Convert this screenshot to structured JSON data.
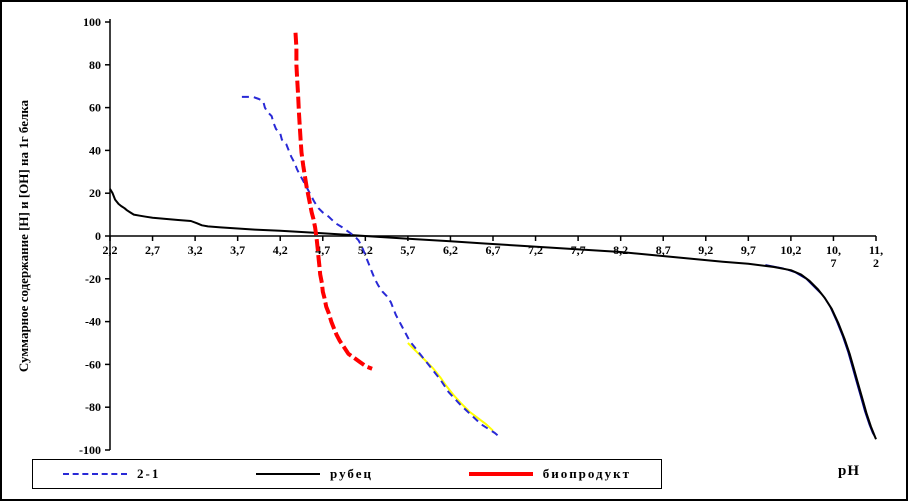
{
  "window": {
    "background": "#ffffff",
    "border_color": "#000000"
  },
  "chart_data": {
    "type": "line",
    "title": "",
    "xlabel": "pH",
    "ylabel": "Суммарное содержание [H] и [OH] на 1г белка",
    "xlim": [
      2.2,
      11.2
    ],
    "ylim": [
      -100,
      100
    ],
    "grid": false,
    "legend_position": "bottom",
    "y_ticks": [
      100,
      80,
      60,
      40,
      20,
      0,
      -20,
      -40,
      -60,
      -80,
      -100
    ],
    "x_ticks": [
      2.2,
      2.7,
      3.2,
      3.7,
      4.2,
      4.7,
      5.2,
      5.7,
      6.2,
      6.7,
      7.2,
      7.7,
      8.2,
      8.7,
      9.2,
      9.7,
      10.2,
      10.7,
      11.2
    ],
    "x_tick_labels": [
      [
        "2,2"
      ],
      [
        "2,7"
      ],
      [
        "3,2"
      ],
      [
        "3,7"
      ],
      [
        "4,2"
      ],
      [
        "4,7"
      ],
      [
        "5,2"
      ],
      [
        "5,7"
      ],
      [
        "6,2"
      ],
      [
        "6,7"
      ],
      [
        "7,2"
      ],
      [
        "7,7"
      ],
      [
        "8,2"
      ],
      [
        "8,7"
      ],
      [
        "9,2"
      ],
      [
        "9,7"
      ],
      [
        "10,2"
      ],
      [
        "10,",
        "7"
      ],
      [
        "11,",
        "2"
      ]
    ],
    "series": [
      {
        "name": "unlabeled-yellow",
        "in_legend": false,
        "color": "#ffff00",
        "width": 2,
        "dash": null,
        "points": [
          [
            5.7,
            -50
          ],
          [
            5.8,
            -54
          ],
          [
            5.9,
            -58
          ],
          [
            6.0,
            -62
          ],
          [
            6.08,
            -66
          ],
          [
            6.15,
            -70
          ],
          [
            6.23,
            -74
          ],
          [
            6.32,
            -78
          ],
          [
            6.42,
            -82
          ],
          [
            6.52,
            -85
          ],
          [
            6.62,
            -88
          ],
          [
            6.7,
            -91
          ]
        ]
      },
      {
        "name": "unlabeled-navy",
        "in_legend": false,
        "color": "#000080",
        "width": 1.5,
        "dash": null,
        "points": [
          [
            9.9,
            -13.5
          ],
          [
            10.1,
            -15
          ],
          [
            10.25,
            -17
          ],
          [
            10.38,
            -20
          ],
          [
            10.48,
            -24
          ],
          [
            10.58,
            -28
          ],
          [
            10.66,
            -33
          ],
          [
            10.74,
            -40
          ],
          [
            10.81,
            -47
          ],
          [
            10.87,
            -54
          ],
          [
            10.92,
            -61
          ],
          [
            10.97,
            -68
          ],
          [
            11.02,
            -75
          ],
          [
            11.07,
            -82
          ],
          [
            11.12,
            -88
          ],
          [
            11.16,
            -92
          ],
          [
            11.19,
            -94
          ]
        ]
      },
      {
        "name": "рубец",
        "in_legend": true,
        "color": "#000000",
        "width": 2,
        "dash": null,
        "points": [
          [
            2.2,
            22
          ],
          [
            2.23,
            20
          ],
          [
            2.26,
            17
          ],
          [
            2.3,
            15
          ],
          [
            2.33,
            14
          ],
          [
            2.37,
            13
          ],
          [
            2.4,
            12
          ],
          [
            2.44,
            11
          ],
          [
            2.48,
            10
          ],
          [
            2.55,
            9.5
          ],
          [
            2.62,
            9
          ],
          [
            2.7,
            8.5
          ],
          [
            2.85,
            8
          ],
          [
            3.0,
            7.5
          ],
          [
            3.15,
            7
          ],
          [
            3.22,
            6
          ],
          [
            3.28,
            5
          ],
          [
            3.35,
            4.5
          ],
          [
            3.5,
            4
          ],
          [
            3.7,
            3.5
          ],
          [
            3.9,
            3
          ],
          [
            4.2,
            2.5
          ],
          [
            4.6,
            1.5
          ],
          [
            5.0,
            0.5
          ],
          [
            5.4,
            -0.5
          ],
          [
            5.8,
            -1.5
          ],
          [
            6.2,
            -2.5
          ],
          [
            6.6,
            -3.5
          ],
          [
            7.0,
            -4.5
          ],
          [
            7.4,
            -5.5
          ],
          [
            7.8,
            -6.5
          ],
          [
            8.2,
            -7.5
          ],
          [
            8.6,
            -9
          ],
          [
            9.0,
            -10.5
          ],
          [
            9.4,
            -12
          ],
          [
            9.7,
            -13
          ],
          [
            10.0,
            -14.5
          ],
          [
            10.2,
            -16
          ],
          [
            10.32,
            -18
          ],
          [
            10.42,
            -21
          ],
          [
            10.52,
            -25
          ],
          [
            10.6,
            -29
          ],
          [
            10.68,
            -34
          ],
          [
            10.76,
            -41
          ],
          [
            10.83,
            -48
          ],
          [
            10.89,
            -55
          ],
          [
            10.94,
            -62
          ],
          [
            10.99,
            -69
          ],
          [
            11.04,
            -76
          ],
          [
            11.09,
            -83
          ],
          [
            11.14,
            -89
          ],
          [
            11.18,
            -93
          ],
          [
            11.2,
            -95
          ]
        ]
      },
      {
        "name": "2-1",
        "in_legend": true,
        "color": "#2929d6",
        "width": 2,
        "dash": "7 5",
        "points": [
          [
            3.75,
            65
          ],
          [
            3.88,
            65
          ],
          [
            3.95,
            64
          ],
          [
            4.0,
            63
          ],
          [
            4.02,
            60
          ],
          [
            4.05,
            58
          ],
          [
            4.1,
            56
          ],
          [
            4.12,
            53
          ],
          [
            4.15,
            50
          ],
          [
            4.2,
            48
          ],
          [
            4.22,
            45
          ],
          [
            4.27,
            43
          ],
          [
            4.3,
            40
          ],
          [
            4.33,
            37
          ],
          [
            4.37,
            34
          ],
          [
            4.4,
            31
          ],
          [
            4.44,
            28
          ],
          [
            4.48,
            25
          ],
          [
            4.52,
            22
          ],
          [
            4.56,
            19
          ],
          [
            4.6,
            16
          ],
          [
            4.65,
            13
          ],
          [
            4.7,
            11
          ],
          [
            4.77,
            9
          ],
          [
            4.85,
            6
          ],
          [
            4.93,
            4
          ],
          [
            5.0,
            2
          ],
          [
            5.07,
            0
          ],
          [
            5.12,
            -2
          ],
          [
            5.16,
            -5
          ],
          [
            5.19,
            -8
          ],
          [
            5.22,
            -11
          ],
          [
            5.25,
            -14
          ],
          [
            5.28,
            -17
          ],
          [
            5.31,
            -20
          ],
          [
            5.35,
            -23
          ],
          [
            5.4,
            -26
          ],
          [
            5.45,
            -28
          ],
          [
            5.5,
            -31
          ],
          [
            5.53,
            -34
          ],
          [
            5.56,
            -37
          ],
          [
            5.6,
            -40
          ],
          [
            5.64,
            -43
          ],
          [
            5.68,
            -46
          ],
          [
            5.72,
            -49
          ],
          [
            5.78,
            -52
          ],
          [
            5.84,
            -55
          ],
          [
            5.9,
            -58
          ],
          [
            5.96,
            -61
          ],
          [
            6.02,
            -64
          ],
          [
            6.08,
            -67
          ],
          [
            6.13,
            -70
          ],
          [
            6.18,
            -73
          ],
          [
            6.25,
            -76
          ],
          [
            6.32,
            -79
          ],
          [
            6.4,
            -82
          ],
          [
            6.48,
            -85
          ],
          [
            6.56,
            -88
          ],
          [
            6.64,
            -90
          ],
          [
            6.72,
            -92
          ],
          [
            6.78,
            -94
          ]
        ]
      },
      {
        "name": "биопродукт",
        "in_legend": true,
        "color": "#ff0000",
        "width": 4,
        "dash": "12 4",
        "points": [
          [
            4.38,
            95
          ],
          [
            4.39,
            88
          ],
          [
            4.39,
            80
          ],
          [
            4.4,
            73
          ],
          [
            4.41,
            66
          ],
          [
            4.42,
            58
          ],
          [
            4.43,
            51
          ],
          [
            4.44,
            45
          ],
          [
            4.45,
            39
          ],
          [
            4.47,
            33
          ],
          [
            4.49,
            28
          ],
          [
            4.51,
            23
          ],
          [
            4.53,
            19
          ],
          [
            4.55,
            15
          ],
          [
            4.57,
            11
          ],
          [
            4.59,
            8
          ],
          [
            4.61,
            4
          ],
          [
            4.62,
            1
          ],
          [
            4.63,
            -2
          ],
          [
            4.64,
            -6
          ],
          [
            4.65,
            -10
          ],
          [
            4.66,
            -14
          ],
          [
            4.67,
            -18
          ],
          [
            4.69,
            -22
          ],
          [
            4.7,
            -26
          ],
          [
            4.72,
            -29
          ],
          [
            4.74,
            -33
          ],
          [
            4.77,
            -36
          ],
          [
            4.8,
            -40
          ],
          [
            4.83,
            -43
          ],
          [
            4.86,
            -46
          ],
          [
            4.9,
            -49
          ],
          [
            4.95,
            -52
          ],
          [
            5.0,
            -55
          ],
          [
            5.07,
            -57
          ],
          [
            5.14,
            -59
          ],
          [
            5.21,
            -61
          ],
          [
            5.28,
            -62
          ]
        ]
      }
    ]
  },
  "legend": {
    "note": "labels bound from chart_data.series names"
  }
}
